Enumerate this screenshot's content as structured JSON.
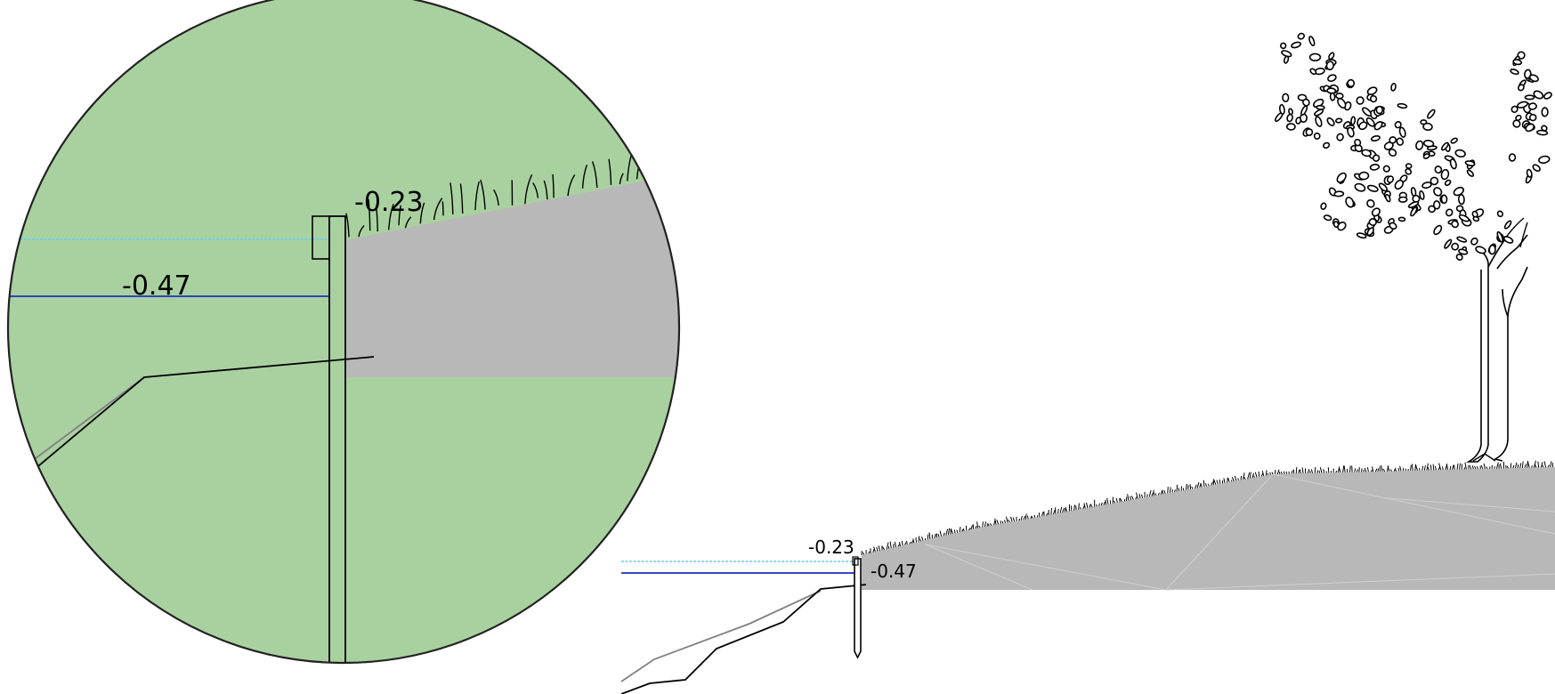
{
  "labels": {
    "top_level_zoom": "-0.23",
    "water_level_zoom": "-0.47",
    "top_level_overview": "-0.23",
    "water_level_overview": "-0.47"
  },
  "colors": {
    "zoom_background": "#a9d1a0",
    "soil_fill": "#b8b8b8",
    "water_line_upper": "#66ccee",
    "water_line_lower": "#1f2fbf",
    "bed_outline": "#000000",
    "bed_outline_secondary": "#808080"
  },
  "icons": {
    "tree": "tree-icon",
    "grass": "grass-tufts",
    "sheet_pile": "sheet-pile"
  }
}
